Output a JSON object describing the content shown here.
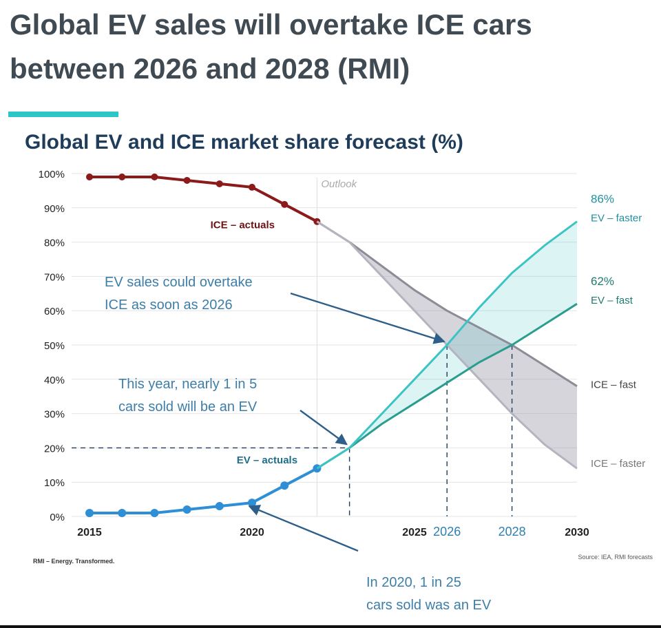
{
  "header": {
    "title": "Global EV sales will overtake ICE cars between 2026 and 2028 (RMI)"
  },
  "chart_data": {
    "type": "line",
    "title": "Global EV and ICE market share forecast (%)",
    "xlabel": "",
    "ylabel": "",
    "xlim": [
      2015,
      2030
    ],
    "ylim": [
      0,
      100
    ],
    "x_ticks": [
      {
        "value": 2015,
        "label": "2015",
        "style": "normal"
      },
      {
        "value": 2020,
        "label": "2020",
        "style": "normal"
      },
      {
        "value": 2025,
        "label": "2025",
        "style": "normal"
      },
      {
        "value": 2026,
        "label": "2026",
        "style": "highlight"
      },
      {
        "value": 2028,
        "label": "2028",
        "style": "highlight"
      },
      {
        "value": 2030,
        "label": "2030",
        "style": "normal"
      }
    ],
    "y_ticks": [
      "0%",
      "10%",
      "20%",
      "30%",
      "40%",
      "50%",
      "60%",
      "70%",
      "80%",
      "90%",
      "100%"
    ],
    "grid": true,
    "outlook_label": "Outlook",
    "outlook_start": 2022,
    "series": [
      {
        "name": "ICE – actuals",
        "color": "#8b1a1a",
        "markers": true,
        "x": [
          2015,
          2016,
          2017,
          2018,
          2019,
          2020,
          2021,
          2022
        ],
        "y": [
          99,
          99,
          99,
          98,
          97,
          96,
          91,
          86
        ]
      },
      {
        "name": "EV – actuals",
        "color": "#2f8fd6",
        "markers": true,
        "x": [
          2015,
          2016,
          2017,
          2018,
          2019,
          2020,
          2021,
          2022
        ],
        "y": [
          1,
          1,
          1,
          2,
          3,
          4,
          9,
          14
        ]
      },
      {
        "name": "ICE – fast",
        "color": "#8c8c96",
        "markers": false,
        "x": [
          2022,
          2023,
          2024,
          2025,
          2026,
          2027,
          2028,
          2029,
          2030
        ],
        "y": [
          86,
          80,
          73,
          66,
          60,
          55,
          50,
          44,
          38
        ]
      },
      {
        "name": "ICE – faster",
        "color": "#b4b4be",
        "markers": false,
        "x": [
          2022,
          2023,
          2024,
          2025,
          2026,
          2027,
          2028,
          2029,
          2030
        ],
        "y": [
          86,
          80,
          70,
          60,
          50,
          40,
          30,
          21,
          14
        ]
      },
      {
        "name": "EV – fast",
        "color": "#2a9d8f",
        "markers": false,
        "x": [
          2022,
          2023,
          2024,
          2025,
          2026,
          2027,
          2028,
          2029,
          2030
        ],
        "y": [
          14,
          20,
          27,
          33,
          39,
          45,
          50,
          56,
          62
        ]
      },
      {
        "name": "EV – faster",
        "color": "#3cc4c4",
        "markers": false,
        "x": [
          2022,
          2023,
          2024,
          2025,
          2026,
          2027,
          2028,
          2029,
          2030
        ],
        "y": [
          14,
          20,
          30,
          40,
          50,
          61,
          71,
          79,
          86
        ]
      }
    ],
    "end_labels": [
      {
        "value": "86%",
        "label": "EV – faster"
      },
      {
        "value": "62%",
        "label": "EV – fast"
      },
      {
        "value": "",
        "label": "ICE – fast"
      },
      {
        "value": "",
        "label": "ICE – faster"
      }
    ],
    "annotations": [
      {
        "lines": [
          "EV sales could overtake",
          "ICE as soon as 2026"
        ],
        "target": [
          2026,
          50
        ]
      },
      {
        "lines": [
          "This year, nearly 1 in 5",
          "cars sold will be an EV"
        ],
        "target": [
          2023,
          20
        ]
      },
      {
        "lines": [
          "In 2020, 1 in 25",
          "cars sold was an EV"
        ],
        "target": [
          2020,
          4
        ]
      }
    ],
    "reference_lines": [
      {
        "x": 2023,
        "y": 20
      },
      {
        "x": 2026,
        "y": 50
      },
      {
        "x": 2028,
        "y": 50
      }
    ]
  },
  "footer": {
    "left": "RMI – Energy. Transformed.",
    "right": "Source: IEA, RMI forecasts"
  }
}
